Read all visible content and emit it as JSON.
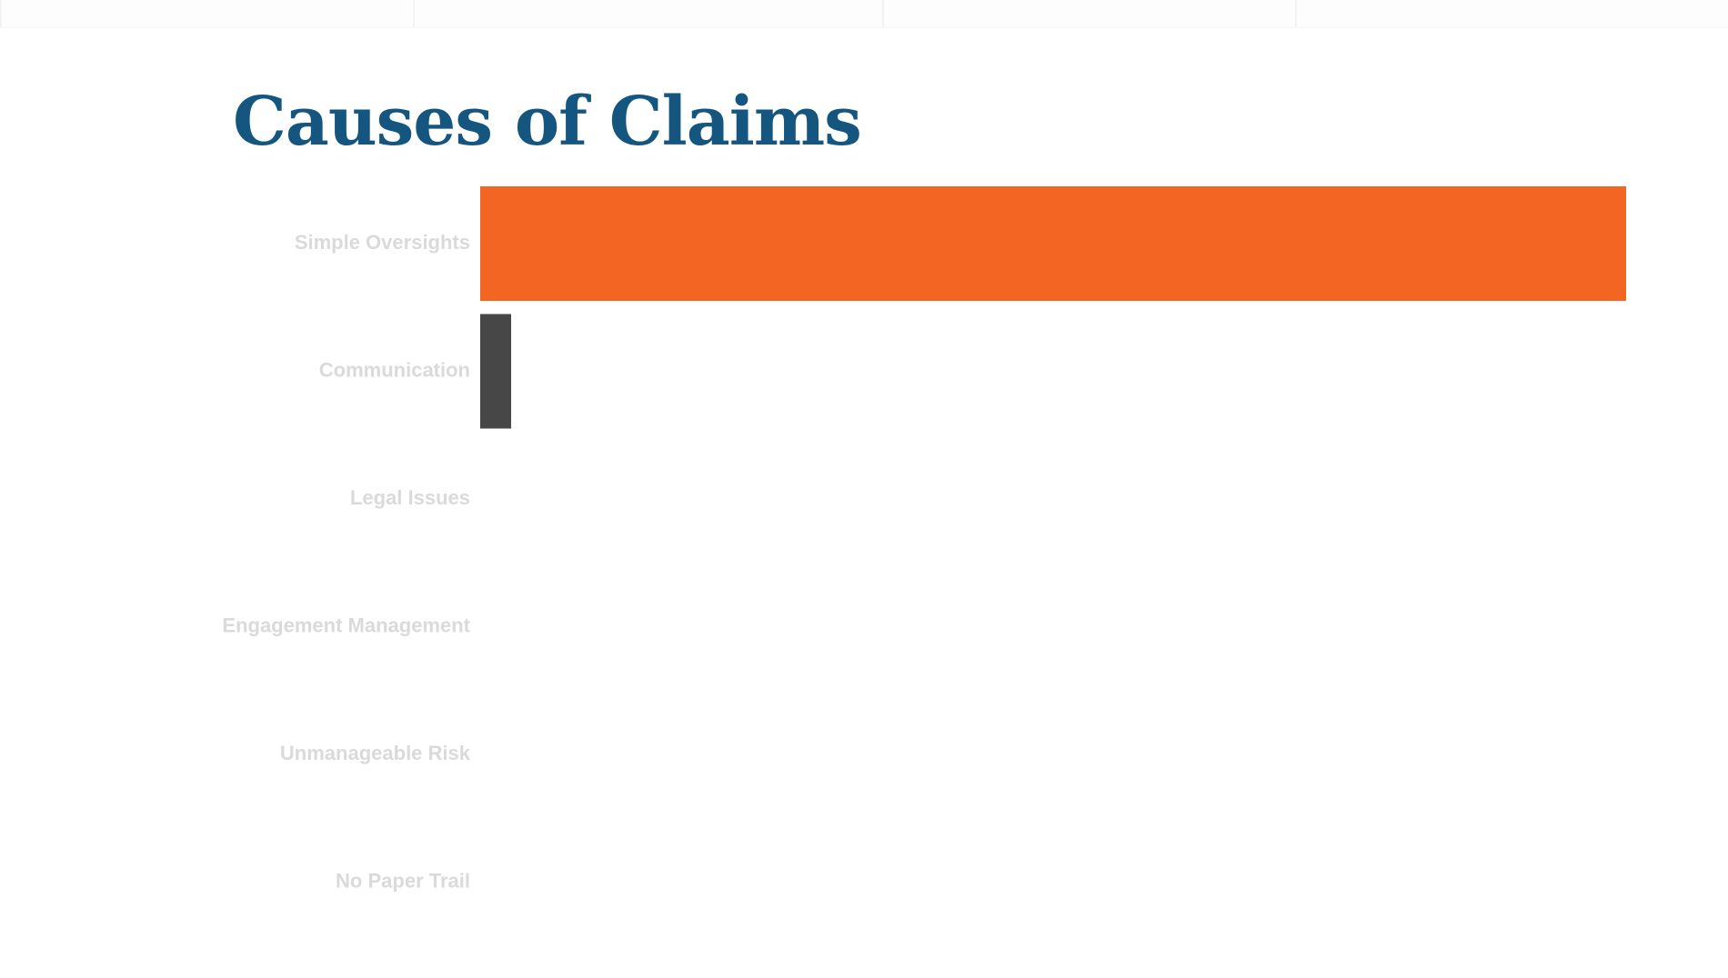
{
  "slide": {
    "title": "Causes of Claims"
  },
  "colors": {
    "title": "#14567f",
    "primary_bar": "#f26522",
    "secondary_bar": "#474747",
    "category_label": "#dadada"
  },
  "chart_data": {
    "type": "bar",
    "orientation": "horizontal",
    "title": "Causes of Claims",
    "xlabel": "",
    "ylabel": "",
    "grid": false,
    "categories": [
      "Simple Oversights",
      "Communication",
      "Legal Issues",
      "Engagement Management",
      "Unmanageable Risk",
      "No Paper Trail"
    ],
    "values": [
      100,
      2.7,
      0,
      0,
      0,
      0
    ],
    "bar_colors": [
      "#f26522",
      "#474747",
      "#474747",
      "#474747",
      "#474747",
      "#474747"
    ],
    "xlim": [
      0,
      100
    ]
  }
}
